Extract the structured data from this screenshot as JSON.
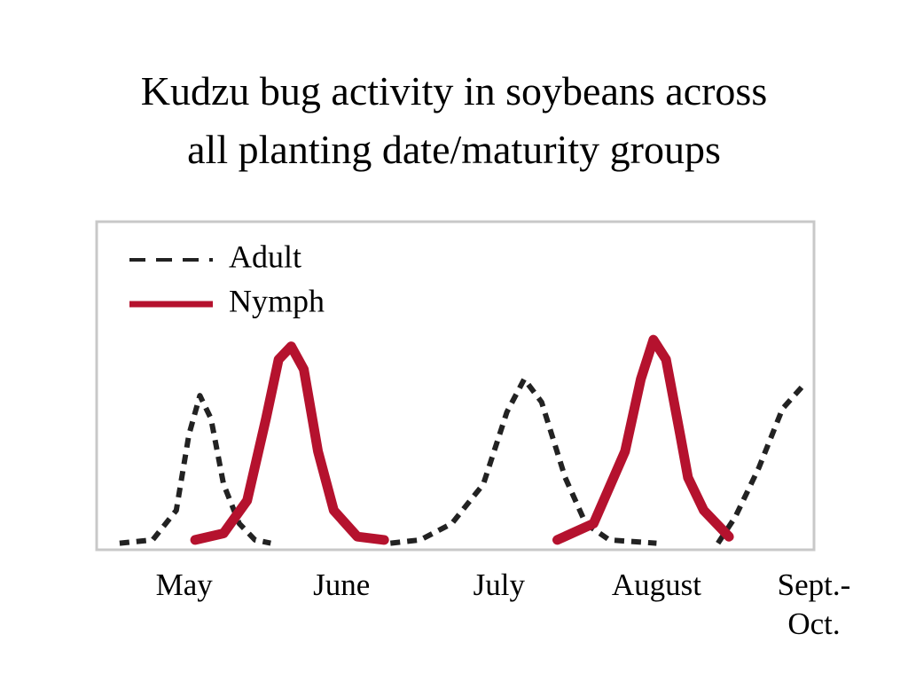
{
  "chart_data": {
    "type": "line",
    "title": "Kudzu bug activity in soybeans across\nall planting date/maturity groups",
    "xlim": [
      -0.55,
      4
    ],
    "xticks": [
      {
        "value": 0,
        "label": "May"
      },
      {
        "value": 1,
        "label": "June"
      },
      {
        "value": 2,
        "label": "July"
      },
      {
        "value": 3,
        "label": "August"
      },
      {
        "value": 4,
        "label": "Sept.-\nOct."
      }
    ],
    "ylim": [
      0,
      100
    ],
    "legend": "upper left",
    "series": [
      {
        "name": "Adult",
        "color": "#222222",
        "dashed": true,
        "x": [
          -0.41,
          -0.2,
          -0.05,
          0.03,
          0.1,
          0.17,
          0.25,
          0.35,
          0.45,
          0.55,
          null,
          1.31,
          1.5,
          1.7,
          1.9,
          2.05,
          2.16,
          2.27,
          2.42,
          2.55,
          2.7,
          3.0,
          null,
          3.39,
          3.5,
          3.65,
          3.8,
          3.93
        ],
        "y": [
          2,
          3,
          12,
          35,
          47,
          40,
          20,
          8,
          3,
          2,
          null,
          2,
          3,
          8,
          20,
          42,
          52,
          45,
          22,
          8,
          3,
          2,
          null,
          2,
          10,
          25,
          43,
          50
        ]
      },
      {
        "name": "Nymph",
        "color": "#b5122e",
        "dashed": false,
        "x": [
          0.07,
          0.25,
          0.4,
          0.52,
          0.6,
          0.68,
          0.76,
          0.85,
          0.95,
          1.1,
          1.27,
          null,
          2.37,
          2.6,
          2.8,
          2.9,
          2.98,
          3.06,
          3.15,
          3.2,
          3.3,
          3.46
        ],
        "y": [
          3,
          5,
          15,
          40,
          58,
          62,
          55,
          30,
          12,
          4,
          3,
          null,
          3,
          8,
          30,
          52,
          64,
          58,
          35,
          22,
          12,
          4
        ]
      }
    ]
  }
}
